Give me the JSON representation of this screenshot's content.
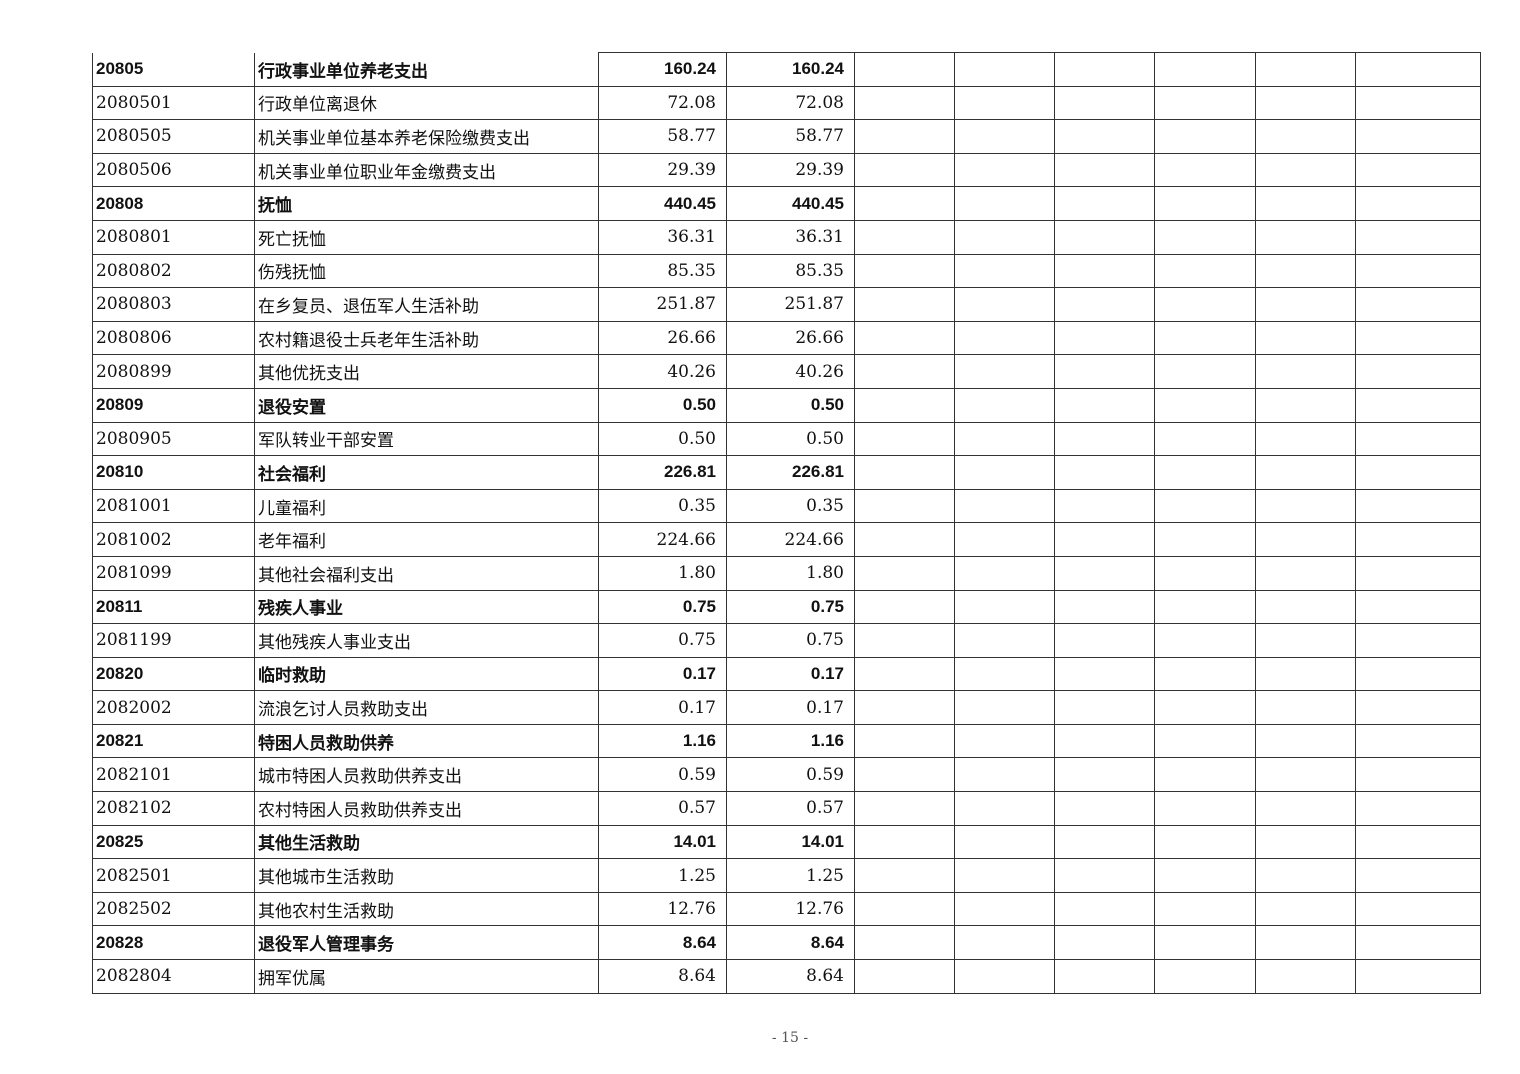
{
  "rows": [
    {
      "code": "20805",
      "name": "行政事业单位养老支出",
      "v1": "160.24",
      "v2": "160.24",
      "bold": true
    },
    {
      "code": "2080501",
      "name": "行政单位离退休",
      "v1": "72.08",
      "v2": "72.08"
    },
    {
      "code": "2080505",
      "name": "机关事业单位基本养老保险缴费支出",
      "v1": "58.77",
      "v2": "58.77"
    },
    {
      "code": "2080506",
      "name": "机关事业单位职业年金缴费支出",
      "v1": "29.39",
      "v2": "29.39"
    },
    {
      "code": "20808",
      "name": "抚恤",
      "v1": "440.45",
      "v2": "440.45",
      "bold": true
    },
    {
      "code": "2080801",
      "name": "死亡抚恤",
      "v1": "36.31",
      "v2": "36.31"
    },
    {
      "code": "2080802",
      "name": "伤残抚恤",
      "v1": "85.35",
      "v2": "85.35"
    },
    {
      "code": "2080803",
      "name": "在乡复员、退伍军人生活补助",
      "v1": "251.87",
      "v2": "251.87"
    },
    {
      "code": "2080806",
      "name": "农村籍退役士兵老年生活补助",
      "v1": "26.66",
      "v2": "26.66"
    },
    {
      "code": "2080899",
      "name": "其他优抚支出",
      "v1": "40.26",
      "v2": "40.26"
    },
    {
      "code": "20809",
      "name": "退役安置",
      "v1": "0.50",
      "v2": "0.50",
      "bold": true
    },
    {
      "code": "2080905",
      "name": "军队转业干部安置",
      "v1": "0.50",
      "v2": "0.50"
    },
    {
      "code": "20810",
      "name": "社会福利",
      "v1": "226.81",
      "v2": "226.81",
      "bold": true
    },
    {
      "code": "2081001",
      "name": "儿童福利",
      "v1": "0.35",
      "v2": "0.35"
    },
    {
      "code": "2081002",
      "name": "老年福利",
      "v1": "224.66",
      "v2": "224.66"
    },
    {
      "code": "2081099",
      "name": "其他社会福利支出",
      "v1": "1.80",
      "v2": "1.80"
    },
    {
      "code": "20811",
      "name": "残疾人事业",
      "v1": "0.75",
      "v2": "0.75",
      "bold": true
    },
    {
      "code": "2081199",
      "name": "其他残疾人事业支出",
      "v1": "0.75",
      "v2": "0.75"
    },
    {
      "code": "20820",
      "name": "临时救助",
      "v1": "0.17",
      "v2": "0.17",
      "bold": true
    },
    {
      "code": "2082002",
      "name": "流浪乞讨人员救助支出",
      "v1": "0.17",
      "v2": "0.17"
    },
    {
      "code": "20821",
      "name": "特困人员救助供养",
      "v1": "1.16",
      "v2": "1.16",
      "bold": true
    },
    {
      "code": "2082101",
      "name": "城市特困人员救助供养支出",
      "v1": "0.59",
      "v2": "0.59"
    },
    {
      "code": "2082102",
      "name": "农村特困人员救助供养支出",
      "v1": "0.57",
      "v2": "0.57"
    },
    {
      "code": "20825",
      "name": "其他生活救助",
      "v1": "14.01",
      "v2": "14.01",
      "bold": true
    },
    {
      "code": "2082501",
      "name": "其他城市生活救助",
      "v1": "1.25",
      "v2": "1.25"
    },
    {
      "code": "2082502",
      "name": "其他农村生活救助",
      "v1": "12.76",
      "v2": "12.76"
    },
    {
      "code": "20828",
      "name": "退役军人管理事务",
      "v1": "8.64",
      "v2": "8.64",
      "bold": true
    },
    {
      "code": "2082804",
      "name": "拥军优属",
      "v1": "8.64",
      "v2": "8.64"
    }
  ],
  "page_number": "- 15 -"
}
